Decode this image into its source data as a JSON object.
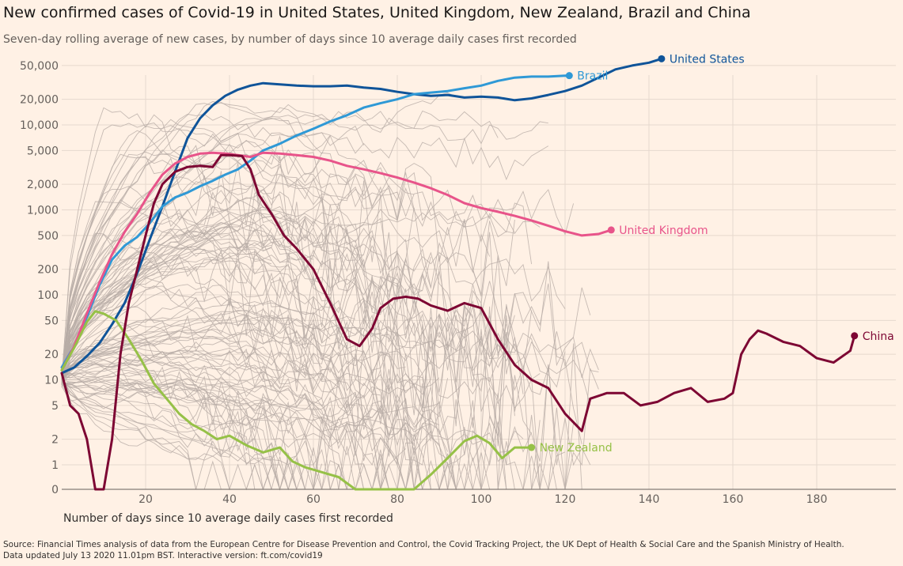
{
  "header": {
    "title": "New confirmed cases of Covid-19 in United States, United Kingdom, New Zealand, Brazil and China",
    "subtitle": "Seven-day rolling average of new cases, by number of days since 10 average daily cases first recorded"
  },
  "footer": {
    "source": "Source: Financial Times analysis of data from the European Centre for Disease Prevention and Control, the Covid Tracking Project, the UK Dept of Health & Social Care and the Spanish Ministry of Health.",
    "updated": "Data updated July 13 2020 11.01pm BST. Interactive version: ft.com/covid19"
  },
  "chart_data": {
    "type": "line",
    "title": "New confirmed cases of Covid-19 in United States, United Kingdom, New Zealand, Brazil and China",
    "subtitle": "Seven-day rolling average of new cases, by number of days since 10 average daily cases first recorded",
    "xlabel": "Number of days since 10 average daily cases first recorded",
    "ylabel": "",
    "y_scale": "log",
    "xlim": [
      0,
      200
    ],
    "x_ticks": [
      20,
      40,
      60,
      80,
      100,
      120,
      140,
      160,
      180
    ],
    "y_ticks": [
      0,
      1,
      2,
      5,
      10,
      20,
      50,
      100,
      200,
      500,
      1000,
      2000,
      5000,
      10000,
      20000,
      50000
    ],
    "y_tick_labels": [
      "0",
      "1",
      "2",
      "5",
      "10",
      "20",
      "50",
      "100",
      "200",
      "500",
      "1,000",
      "2,000",
      "5,000",
      "10,000",
      "20,000",
      "50,000"
    ],
    "grid": true,
    "background_series_color": "#b8ada6",
    "series": [
      {
        "name": "United States",
        "color": "#0f5499",
        "x": [
          0,
          3,
          6,
          9,
          12,
          15,
          18,
          21,
          24,
          27,
          30,
          33,
          36,
          39,
          42,
          45,
          48,
          52,
          56,
          60,
          64,
          68,
          72,
          76,
          80,
          84,
          88,
          92,
          96,
          100,
          104,
          108,
          112,
          116,
          120,
          124,
          128,
          132,
          136,
          140,
          143
        ],
        "y": [
          12,
          14,
          19,
          27,
          45,
          80,
          180,
          450,
          1100,
          2800,
          7000,
          12000,
          17000,
          22000,
          26000,
          29000,
          31000,
          30000,
          29000,
          28500,
          28500,
          29000,
          27500,
          26500,
          24500,
          23000,
          22000,
          22500,
          21000,
          21500,
          21000,
          19500,
          20500,
          22500,
          25000,
          29000,
          36000,
          45000,
          50000,
          54000,
          60000
        ]
      },
      {
        "name": "Brazil",
        "color": "#2f99d6",
        "x": [
          0,
          3,
          6,
          9,
          12,
          15,
          18,
          21,
          24,
          27,
          30,
          33,
          36,
          39,
          42,
          45,
          48,
          52,
          56,
          60,
          64,
          68,
          72,
          76,
          80,
          84,
          88,
          92,
          96,
          100,
          104,
          108,
          112,
          116,
          120,
          121
        ],
        "y": [
          14,
          25,
          55,
          130,
          260,
          380,
          480,
          700,
          1100,
          1400,
          1600,
          1900,
          2200,
          2600,
          3000,
          3800,
          5000,
          6000,
          7500,
          9000,
          11000,
          13000,
          16000,
          18000,
          20000,
          23000,
          24000,
          25000,
          27000,
          29000,
          33000,
          36000,
          37000,
          37000,
          38000,
          38000
        ]
      },
      {
        "name": "United Kingdom",
        "color": "#e8548a",
        "x": [
          0,
          3,
          6,
          9,
          12,
          15,
          18,
          21,
          24,
          27,
          30,
          33,
          36,
          39,
          42,
          45,
          48,
          52,
          56,
          60,
          64,
          68,
          72,
          76,
          80,
          84,
          88,
          92,
          96,
          100,
          104,
          108,
          112,
          116,
          120,
          124,
          128,
          131
        ],
        "y": [
          13,
          25,
          60,
          140,
          300,
          550,
          900,
          1600,
          2600,
          3500,
          4200,
          4600,
          4700,
          4600,
          4400,
          4200,
          4700,
          4600,
          4400,
          4200,
          3800,
          3300,
          3000,
          2700,
          2400,
          2100,
          1800,
          1500,
          1200,
          1050,
          950,
          850,
          750,
          650,
          560,
          500,
          520,
          580
        ]
      },
      {
        "name": "New Zealand",
        "color": "#96c147",
        "x": [
          0,
          3,
          6,
          8,
          10,
          13,
          16,
          19,
          22,
          25,
          28,
          31,
          34,
          37,
          40,
          44,
          48,
          52,
          55,
          58,
          62,
          66,
          70,
          75,
          80,
          84,
          88,
          92,
          96,
          99,
          102,
          105,
          108,
          112
        ],
        "y": [
          13,
          24,
          48,
          64,
          60,
          50,
          30,
          17,
          9,
          6,
          4,
          3,
          2.5,
          2,
          2.2,
          1.7,
          1.4,
          1.6,
          1.1,
          0.9,
          0.7,
          0.5,
          0,
          0,
          0,
          0,
          0.6,
          1.2,
          1.9,
          2.2,
          1.8,
          1.2,
          1.6,
          1.6
        ]
      },
      {
        "name": "China",
        "color": "#7d0633",
        "x": [
          0,
          2,
          4,
          6,
          8,
          10,
          12,
          14,
          16,
          18,
          20,
          22,
          24,
          27,
          30,
          33,
          36,
          38,
          40,
          43,
          45,
          47,
          50,
          53,
          56,
          60,
          64,
          68,
          71,
          74,
          76,
          79,
          82,
          85,
          88,
          92,
          96,
          100,
          104,
          108,
          112,
          116,
          120,
          124,
          126,
          130,
          134,
          138,
          142,
          146,
          150,
          154,
          158,
          160,
          162,
          164,
          166,
          168,
          172,
          176,
          180,
          184,
          188,
          189
        ],
        "y": [
          12,
          5,
          4,
          2,
          0,
          0,
          2,
          20,
          80,
          200,
          500,
          1200,
          2000,
          2800,
          3200,
          3300,
          3200,
          4400,
          4400,
          4300,
          3000,
          1500,
          900,
          500,
          350,
          200,
          80,
          30,
          25,
          40,
          70,
          90,
          95,
          90,
          75,
          65,
          80,
          70,
          30,
          15,
          10,
          8,
          4,
          2.5,
          6,
          7,
          7,
          5,
          5.5,
          7,
          8,
          5.5,
          6,
          7,
          20,
          30,
          38,
          35,
          28,
          25,
          18,
          16,
          22,
          33
        ]
      }
    ]
  }
}
